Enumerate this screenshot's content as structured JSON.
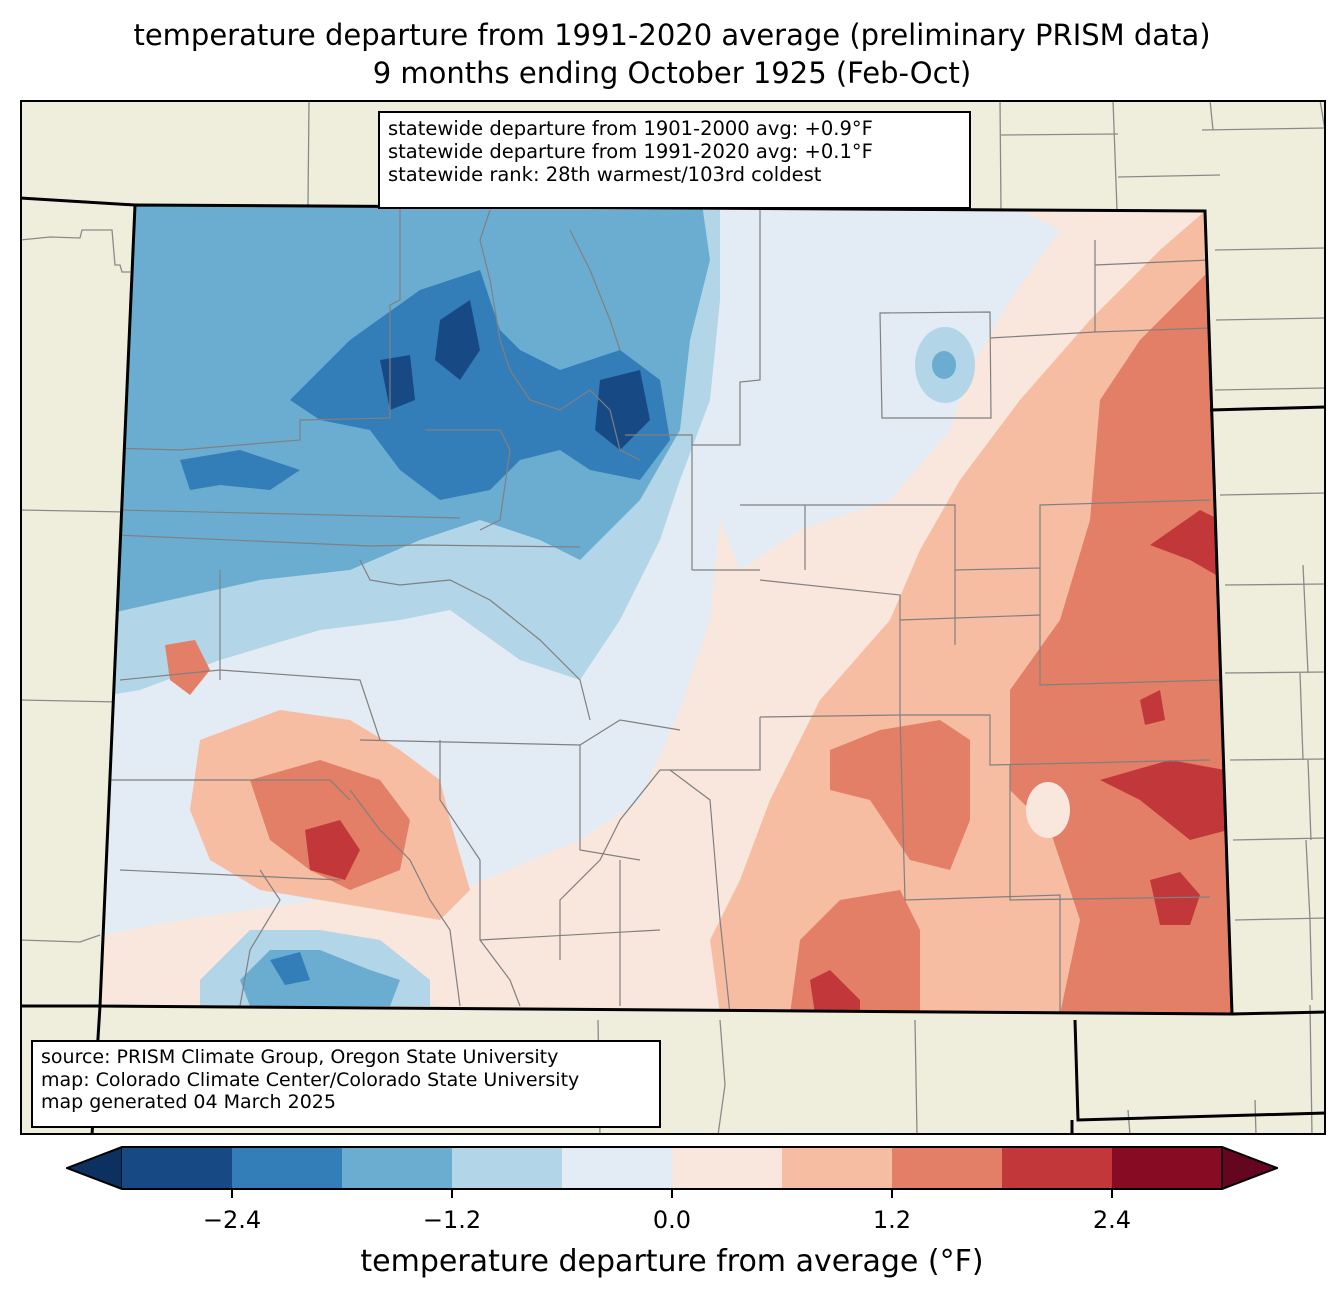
{
  "title": {
    "line1": "temperature departure from 1991-2020 average (preliminary PRISM data)",
    "line2": "9 months ending October 1925 (Feb-Oct)"
  },
  "stats_box": {
    "line1": "statewide departure from 1901-2000 avg: +0.9°F",
    "line2": "statewide departure from 1991-2020 avg: +0.1°F",
    "line3": "statewide rank: 28th warmest/103rd coldest"
  },
  "source_box": {
    "line1": "source: PRISM Climate Group, Oregon State University",
    "line2": "map: Colorado Climate Center/Colorado State University",
    "line3": "map generated 04 March 2025"
  },
  "colorbar": {
    "label": "temperature departure from average (°F)",
    "ticks": [
      "−2.4",
      "−1.2",
      "0.0",
      "1.2",
      "2.4"
    ],
    "tick_values": [
      -2.4,
      -1.2,
      0.0,
      1.2,
      2.4
    ],
    "levels": [
      -3.0,
      -2.4,
      -1.8,
      -1.2,
      -0.6,
      0.0,
      0.6,
      1.2,
      1.8,
      2.4,
      3.0
    ],
    "colors": [
      "#174a84",
      "#337eb8",
      "#6aadd1",
      "#b2d5e7",
      "#e3ecf4",
      "#f9e6dc",
      "#f7bda2",
      "#e27f66",
      "#c2383a",
      "#870c23"
    ],
    "under_color": "#0c305f",
    "over_color": "#650620",
    "extend": "both"
  },
  "chart_data": {
    "type": "heatmap",
    "title": "temperature departure from 1991-2020 average (preliminary PRISM data) — 9 months ending October 1925 (Feb-Oct)",
    "region": "Colorado",
    "colorbar_label": "temperature departure from average (°F)",
    "range": [
      -3.0,
      3.0
    ],
    "statewide_departure_1901_2000": 0.9,
    "statewide_departure_1991_2020": 0.1,
    "rank_warmest": 28,
    "rank_coldest": 103,
    "regional_pattern": [
      {
        "area": "northwest / north-central mountains",
        "departure_range": [
          -3.0,
          -0.6
        ]
      },
      {
        "area": "northeast plains",
        "departure_range": [
          -0.6,
          1.2
        ]
      },
      {
        "area": "east-central / southeast plains",
        "departure_range": [
          0.6,
          3.0
        ]
      },
      {
        "area": "southwest San Juan area",
        "departure_range": [
          0.6,
          2.4
        ]
      },
      {
        "area": "south-central San Luis Valley edge",
        "departure_range": [
          -2.4,
          -0.6
        ]
      }
    ]
  }
}
